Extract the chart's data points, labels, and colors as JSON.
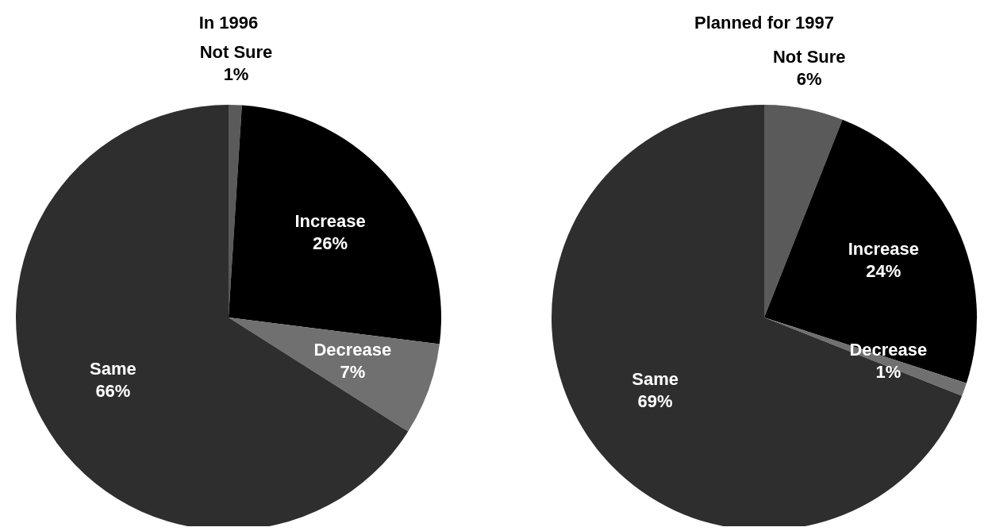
{
  "chart_data": [
    {
      "type": "pie",
      "title": "In 1996",
      "categories": [
        "Not Sure",
        "Increase",
        "Decrease",
        "Same"
      ],
      "values": [
        1,
        26,
        7,
        66
      ],
      "value_labels": [
        "1%",
        "26%",
        "7%",
        "66%"
      ],
      "colors": [
        "#5a5a5a",
        "#000000",
        "#707070",
        "#2e2e2e"
      ]
    },
    {
      "type": "pie",
      "title": "Planned for 1997",
      "categories": [
        "Not Sure",
        "Increase",
        "Decrease",
        "Same"
      ],
      "values": [
        6,
        24,
        1,
        69
      ],
      "value_labels": [
        "6%",
        "24%",
        "1%",
        "69%"
      ],
      "colors": [
        "#5a5a5a",
        "#000000",
        "#707070",
        "#2e2e2e"
      ]
    }
  ]
}
